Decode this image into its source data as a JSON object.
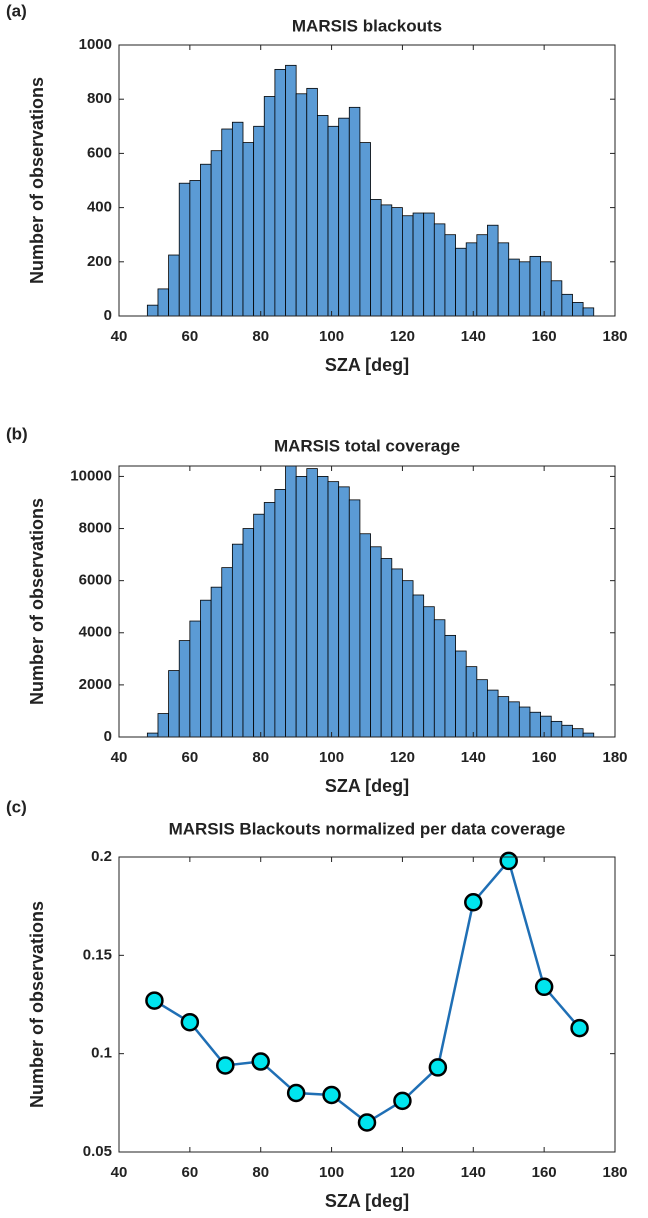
{
  "chart_data": [
    {
      "type": "histogram",
      "panel_label": "(a)",
      "title": "MARSIS blackouts",
      "xlabel": "SZA [deg]",
      "ylabel": "Number of observations",
      "bins": [
        48,
        51,
        54,
        57,
        60,
        63,
        66,
        69,
        72,
        75,
        78,
        81,
        84,
        87,
        90,
        93,
        96,
        99,
        102,
        105,
        108,
        111,
        114,
        117,
        120,
        123,
        126,
        129,
        132,
        135,
        138,
        141,
        144,
        147,
        150,
        153,
        156,
        159,
        162,
        165,
        168,
        171,
        174
      ],
      "counts": [
        40,
        100,
        225,
        490,
        500,
        560,
        610,
        690,
        715,
        640,
        700,
        810,
        910,
        925,
        820,
        840,
        740,
        700,
        730,
        770,
        640,
        430,
        410,
        400,
        370,
        380,
        380,
        340,
        300,
        250,
        270,
        300,
        335,
        270,
        210,
        200,
        220,
        200,
        130,
        80,
        50,
        30
      ],
      "color": "#5b9bd5",
      "xlim": [
        40,
        180
      ],
      "xticks": [
        40,
        60,
        80,
        100,
        120,
        140,
        160,
        180
      ],
      "ylim": [
        0,
        1000
      ],
      "yticks": [
        0,
        200,
        400,
        600,
        800,
        1000
      ]
    },
    {
      "type": "histogram",
      "panel_label": "(b)",
      "title": "MARSIS total coverage",
      "xlabel": "SZA [deg]",
      "ylabel": "Number of observations",
      "bins": [
        48,
        51,
        54,
        57,
        60,
        63,
        66,
        69,
        72,
        75,
        78,
        81,
        84,
        87,
        90,
        93,
        96,
        99,
        102,
        105,
        108,
        111,
        114,
        117,
        120,
        123,
        126,
        129,
        132,
        135,
        138,
        141,
        144,
        147,
        150,
        153,
        156,
        159,
        162,
        165,
        168,
        171,
        174
      ],
      "counts": [
        150,
        900,
        2550,
        3700,
        4450,
        5250,
        5750,
        6500,
        7400,
        8000,
        8550,
        9000,
        9500,
        10400,
        10000,
        10300,
        10000,
        9800,
        9600,
        9100,
        7800,
        7300,
        6850,
        6450,
        6000,
        5450,
        5000,
        4500,
        3900,
        3300,
        2700,
        2200,
        1800,
        1550,
        1350,
        1150,
        950,
        800,
        600,
        450,
        320,
        150
      ],
      "color": "#5b9bd5",
      "xlim": [
        40,
        180
      ],
      "xticks": [
        40,
        60,
        80,
        100,
        120,
        140,
        160,
        180
      ],
      "ylim": [
        0,
        10400
      ],
      "yticks": [
        0,
        2000,
        4000,
        6000,
        8000,
        10000
      ]
    },
    {
      "type": "line",
      "panel_label": "(c)",
      "title": "MARSIS Blackouts normalized per data coverage",
      "xlabel": "SZA [deg]",
      "ylabel": "Number of observations",
      "x": [
        50,
        60,
        70,
        80,
        90,
        100,
        110,
        120,
        130,
        140,
        150,
        160,
        170
      ],
      "values": [
        0.127,
        0.116,
        0.094,
        0.096,
        0.08,
        0.079,
        0.065,
        0.076,
        0.093,
        0.177,
        0.198,
        0.134,
        0.113
      ],
      "color": "#1f6fb5",
      "marker_color": "#00e5ee",
      "xlim": [
        40,
        180
      ],
      "xticks": [
        40,
        60,
        80,
        100,
        120,
        140,
        160,
        180
      ],
      "ylim": [
        0.05,
        0.2
      ],
      "yticks": [
        0.05,
        0.1,
        0.15,
        0.2
      ]
    }
  ]
}
